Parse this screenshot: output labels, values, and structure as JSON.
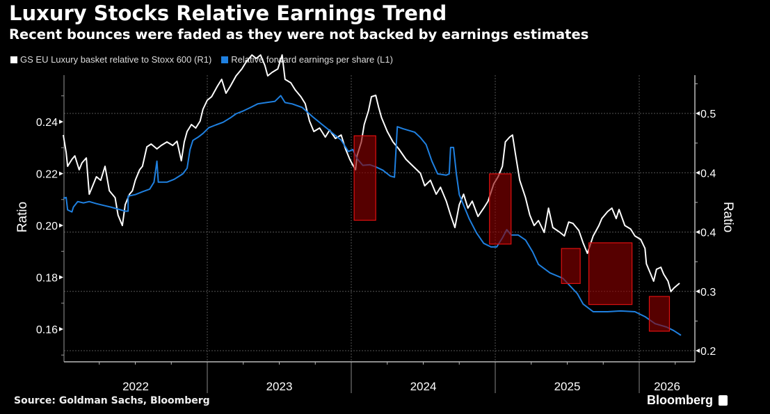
{
  "chart_data": {
    "type": "line",
    "title": "Luxury Stocks Relative Earnings Trend",
    "subtitle": "Recent bounces were faded as they were not backed by earnings estimates",
    "source": "Source: Goldman Sachs, Bloomberg",
    "brand": "Bloomberg",
    "legend_placement": "top-left",
    "grid": true,
    "x_range": [
      2022.0,
      2026.38
    ],
    "x_tick_labels": [
      "2022",
      "2023",
      "2024",
      "2025",
      "2026"
    ],
    "left_axis": {
      "label": "Ratio",
      "range": [
        0.151,
        0.258
      ],
      "ticks": [
        0.16,
        0.18,
        0.2,
        0.22,
        0.24
      ],
      "tick_labels": [
        "0.16",
        "0.18",
        "0.20",
        "0.22",
        "0.24"
      ]
    },
    "right_axis": {
      "label": "Ratio",
      "range": [
        0.19,
        0.56
      ],
      "ticks": [
        0.2,
        0.275,
        0.35,
        0.425,
        0.5
      ],
      "tick_labels": [
        "0.2",
        "0.3",
        "0.4",
        "0.4",
        "0.5"
      ]
    },
    "series": [
      {
        "name": "GS EU Luxury basket relative to Stoxx 600 (R1)",
        "axis": "right",
        "color": "#ffffff",
        "points": [
          [
            2022.0,
            0.4727
          ],
          [
            2022.02,
            0.4507
          ],
          [
            2022.03,
            0.4331
          ],
          [
            2022.06,
            0.4419
          ],
          [
            2022.08,
            0.4463
          ],
          [
            2022.11,
            0.4287
          ],
          [
            2022.13,
            0.4375
          ],
          [
            2022.16,
            0.4437
          ],
          [
            2022.18,
            0.3979
          ],
          [
            2022.23,
            0.4199
          ],
          [
            2022.26,
            0.4155
          ],
          [
            2022.29,
            0.4331
          ],
          [
            2022.32,
            0.4023
          ],
          [
            2022.36,
            0.3935
          ],
          [
            2022.38,
            0.3715
          ],
          [
            2022.41,
            0.3583
          ],
          [
            2022.43,
            0.3847
          ],
          [
            2022.46,
            0.3979
          ],
          [
            2022.48,
            0.4023
          ],
          [
            2022.5,
            0.4155
          ],
          [
            2022.53,
            0.4287
          ],
          [
            2022.55,
            0.4331
          ],
          [
            2022.58,
            0.4577
          ],
          [
            2022.61,
            0.4613
          ],
          [
            2022.65,
            0.4551
          ],
          [
            2022.68,
            0.4595
          ],
          [
            2022.72,
            0.4639
          ],
          [
            2022.76,
            0.4595
          ],
          [
            2022.79,
            0.4648
          ],
          [
            2022.82,
            0.4402
          ],
          [
            2022.84,
            0.4639
          ],
          [
            2022.86,
            0.4771
          ],
          [
            2022.89,
            0.4859
          ],
          [
            2022.92,
            0.4815
          ],
          [
            2022.95,
            0.4903
          ],
          [
            2022.97,
            0.5053
          ],
          [
            2023.0,
            0.5167
          ],
          [
            2023.03,
            0.5211
          ],
          [
            2023.07,
            0.5343
          ],
          [
            2023.1,
            0.5431
          ],
          [
            2023.13,
            0.5255
          ],
          [
            2023.16,
            0.5343
          ],
          [
            2023.2,
            0.5475
          ],
          [
            2023.24,
            0.5563
          ],
          [
            2023.27,
            0.5651
          ],
          [
            2023.31,
            0.5739
          ],
          [
            2023.34,
            0.5695
          ],
          [
            2023.37,
            0.5739
          ],
          [
            2023.4,
            0.5607
          ],
          [
            2023.42,
            0.5475
          ],
          [
            2023.45,
            0.5519
          ],
          [
            2023.49,
            0.5563
          ],
          [
            2023.52,
            0.5739
          ],
          [
            2023.54,
            0.5431
          ],
          [
            2023.58,
            0.5387
          ],
          [
            2023.61,
            0.5299
          ],
          [
            2023.65,
            0.5211
          ],
          [
            2023.68,
            0.5123
          ],
          [
            2023.71,
            0.4903
          ],
          [
            2023.74,
            0.4771
          ],
          [
            2023.78,
            0.4815
          ],
          [
            2023.82,
            0.4701
          ],
          [
            2023.85,
            0.4789
          ],
          [
            2023.89,
            0.4683
          ],
          [
            2023.93,
            0.4727
          ],
          [
            2023.96,
            0.4551
          ],
          [
            2023.99,
            0.4419
          ],
          [
            2024.01,
            0.4349
          ],
          [
            2024.03,
            0.4287
          ],
          [
            2024.04,
            0.4463
          ],
          [
            2024.07,
            0.4639
          ],
          [
            2024.09,
            0.4859
          ],
          [
            2024.12,
            0.5035
          ],
          [
            2024.14,
            0.5211
          ],
          [
            2024.17,
            0.5229
          ],
          [
            2024.19,
            0.5079
          ],
          [
            2024.21,
            0.4947
          ],
          [
            2024.25,
            0.4771
          ],
          [
            2024.29,
            0.4639
          ],
          [
            2024.33,
            0.4551
          ],
          [
            2024.38,
            0.4419
          ],
          [
            2024.43,
            0.4331
          ],
          [
            2024.48,
            0.4243
          ],
          [
            2024.51,
            0.4085
          ],
          [
            2024.55,
            0.4155
          ],
          [
            2024.59,
            0.3979
          ],
          [
            2024.62,
            0.4067
          ],
          [
            2024.66,
            0.3891
          ],
          [
            2024.69,
            0.3715
          ],
          [
            2024.72,
            0.3557
          ],
          [
            2024.75,
            0.3847
          ],
          [
            2024.78,
            0.3979
          ],
          [
            2024.81,
            0.3803
          ],
          [
            2024.84,
            0.3891
          ],
          [
            2024.88,
            0.3697
          ],
          [
            2024.92,
            0.3803
          ],
          [
            2024.95,
            0.3891
          ],
          [
            2024.99,
            0.4111
          ],
          [
            2025.02,
            0.4199
          ],
          [
            2025.05,
            0.4331
          ],
          [
            2025.07,
            0.4639
          ],
          [
            2025.1,
            0.4701
          ],
          [
            2025.12,
            0.4727
          ],
          [
            2025.14,
            0.4489
          ],
          [
            2025.17,
            0.4155
          ],
          [
            2025.21,
            0.3935
          ],
          [
            2025.24,
            0.3715
          ],
          [
            2025.27,
            0.3583
          ],
          [
            2025.3,
            0.3645
          ],
          [
            2025.34,
            0.3495
          ],
          [
            2025.37,
            0.3803
          ],
          [
            2025.4,
            0.3557
          ],
          [
            2025.45,
            0.3495
          ],
          [
            2025.48,
            0.3451
          ],
          [
            2025.51,
            0.3627
          ],
          [
            2025.54,
            0.3609
          ],
          [
            2025.58,
            0.3521
          ],
          [
            2025.61,
            0.3363
          ],
          [
            2025.64,
            0.3231
          ],
          [
            2025.68,
            0.3451
          ],
          [
            2025.72,
            0.3583
          ],
          [
            2025.74,
            0.3671
          ],
          [
            2025.78,
            0.3759
          ],
          [
            2025.81,
            0.3803
          ],
          [
            2025.84,
            0.3671
          ],
          [
            2025.86,
            0.3785
          ],
          [
            2025.9,
            0.3583
          ],
          [
            2025.94,
            0.3539
          ],
          [
            2025.97,
            0.3451
          ],
          [
            2026.01,
            0.3407
          ],
          [
            2026.04,
            0.3293
          ],
          [
            2026.05,
            0.3099
          ],
          [
            2026.08,
            0.2967
          ],
          [
            2026.1,
            0.2879
          ],
          [
            2026.12,
            0.3029
          ],
          [
            2026.15,
            0.3055
          ],
          [
            2026.17,
            0.2967
          ],
          [
            2026.2,
            0.2879
          ],
          [
            2026.22,
            0.2747
          ],
          [
            2026.24,
            0.2791
          ],
          [
            2026.28,
            0.2853
          ]
        ]
      },
      {
        "name": "Relative forward earnings per share (L1)",
        "axis": "left",
        "color": "#1f80e0",
        "points": [
          [
            2022.0,
            0.2105
          ],
          [
            2022.02,
            0.2108
          ],
          [
            2022.03,
            0.206
          ],
          [
            2022.06,
            0.2052
          ],
          [
            2022.07,
            0.2071
          ],
          [
            2022.1,
            0.2092
          ],
          [
            2022.14,
            0.2087
          ],
          [
            2022.18,
            0.2092
          ],
          [
            2022.23,
            0.2084
          ],
          [
            2022.29,
            0.2076
          ],
          [
            2022.33,
            0.2071
          ],
          [
            2022.38,
            0.2063
          ],
          [
            2022.43,
            0.2055
          ],
          [
            2022.45,
            0.2055
          ],
          [
            2022.45,
            0.2113
          ],
          [
            2022.5,
            0.2119
          ],
          [
            2022.55,
            0.213
          ],
          [
            2022.6,
            0.214
          ],
          [
            2022.63,
            0.2167
          ],
          [
            2022.65,
            0.2248
          ],
          [
            2022.66,
            0.2167
          ],
          [
            2022.72,
            0.2167
          ],
          [
            2022.77,
            0.2178
          ],
          [
            2022.83,
            0.2199
          ],
          [
            2022.86,
            0.2221
          ],
          [
            2022.88,
            0.2293
          ],
          [
            2022.9,
            0.2328
          ],
          [
            2022.94,
            0.2342
          ],
          [
            2022.97,
            0.2355
          ],
          [
            2023.01,
            0.2377
          ],
          [
            2023.06,
            0.2388
          ],
          [
            2023.11,
            0.2398
          ],
          [
            2023.16,
            0.2415
          ],
          [
            2023.2,
            0.2431
          ],
          [
            2023.25,
            0.2442
          ],
          [
            2023.3,
            0.2455
          ],
          [
            2023.35,
            0.2469
          ],
          [
            2023.41,
            0.2474
          ],
          [
            2023.47,
            0.2479
          ],
          [
            2023.51,
            0.2501
          ],
          [
            2023.54,
            0.2474
          ],
          [
            2023.59,
            0.2469
          ],
          [
            2023.66,
            0.2455
          ],
          [
            2023.73,
            0.242
          ],
          [
            2023.79,
            0.2393
          ],
          [
            2023.83,
            0.2375
          ],
          [
            2023.87,
            0.2356
          ],
          [
            2023.93,
            0.2329
          ],
          [
            2023.98,
            0.2285
          ],
          [
            2024.01,
            0.2293
          ],
          [
            2024.04,
            0.2258
          ],
          [
            2024.08,
            0.2232
          ],
          [
            2024.13,
            0.2234
          ],
          [
            2024.17,
            0.2226
          ],
          [
            2024.22,
            0.2213
          ],
          [
            2024.27,
            0.2191
          ],
          [
            2024.3,
            0.2186
          ],
          [
            2024.32,
            0.2381
          ],
          [
            2024.36,
            0.2373
          ],
          [
            2024.44,
            0.236
          ],
          [
            2024.48,
            0.2339
          ],
          [
            2024.52,
            0.2312
          ],
          [
            2024.56,
            0.2248
          ],
          [
            2024.6,
            0.2199
          ],
          [
            2024.66,
            0.2194
          ],
          [
            2024.68,
            0.2199
          ],
          [
            2024.69,
            0.2301
          ],
          [
            2024.71,
            0.2301
          ],
          [
            2024.73,
            0.2199
          ],
          [
            2024.75,
            0.2119
          ],
          [
            2024.79,
            0.2065
          ],
          [
            2024.82,
            0.2025
          ],
          [
            2024.87,
            0.1971
          ],
          [
            2024.92,
            0.1931
          ],
          [
            2024.97,
            0.1917
          ],
          [
            2025.01,
            0.1917
          ],
          [
            2025.05,
            0.1952
          ],
          [
            2025.08,
            0.1984
          ],
          [
            2025.11,
            0.1963
          ],
          [
            2025.16,
            0.1963
          ],
          [
            2025.21,
            0.1944
          ],
          [
            2025.26,
            0.1898
          ],
          [
            2025.3,
            0.185
          ],
          [
            2025.38,
            0.1817
          ],
          [
            2025.47,
            0.1796
          ],
          [
            2025.57,
            0.1737
          ],
          [
            2025.61,
            0.1697
          ],
          [
            2025.68,
            0.1667
          ],
          [
            2025.78,
            0.1667
          ],
          [
            2025.87,
            0.167
          ],
          [
            2025.97,
            0.1667
          ],
          [
            2026.04,
            0.1648
          ],
          [
            2026.11,
            0.1621
          ],
          [
            2026.19,
            0.1608
          ],
          [
            2026.24,
            0.1594
          ],
          [
            2026.29,
            0.1576
          ]
        ]
      }
    ],
    "highlight_boxes": [
      {
        "x_range": [
          2024.02,
          2024.17
        ],
        "left_range": [
          0.202,
          0.2346
        ]
      },
      {
        "x_range": [
          2024.96,
          2025.11
        ],
        "left_range": [
          0.1928,
          0.2199
        ]
      },
      {
        "x_range": [
          2025.46,
          2025.59
        ],
        "left_range": [
          0.1776,
          0.1911
        ]
      },
      {
        "x_range": [
          2025.65,
          2025.95
        ],
        "left_range": [
          0.1695,
          0.1933
        ]
      },
      {
        "x_range": [
          2026.07,
          2026.21
        ],
        "left_range": [
          0.1592,
          0.1726
        ]
      }
    ],
    "highlight_fill": "#8b0000",
    "highlight_border": "#e01010"
  }
}
